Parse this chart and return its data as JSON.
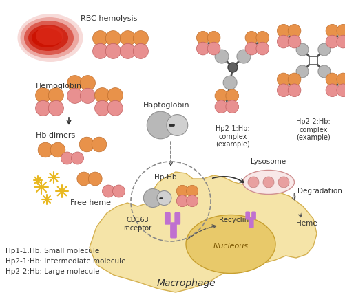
{
  "background": "#ffffff",
  "macrophage_color": "#f5e4a8",
  "nucleus_color": "#e8c96a",
  "rbc_outer_color": "#cc1100",
  "rbc_inner_color": "#e83322",
  "hb_orange_color": "#e8924a",
  "hb_pink_color": "#e89090",
  "hp_gray1": "#b8b8b8",
  "hp_gray2": "#d0d0d0",
  "hp_connector": "#404040",
  "receptor_color": "#c070d0",
  "lysosome_color": "#f0d0d0",
  "lyso_inner_color": "#e8a8a8",
  "heme_star_color": "#e8b820",
  "arrow_color": "#333333",
  "text_color": "#333333",
  "macrophage_edge": "#d4b050",
  "nucleus_edge": "#c8a030",
  "labels": {
    "rbc": "RBC hemolysis",
    "hemoglobin": "Hemoglobin",
    "hb_dimers": "Hb dimers",
    "free_heme": "Free heme",
    "haptoglobin": "Haptoglobin",
    "hp_hb": "Hp-Hb",
    "cd163": "CD163\nreceptor",
    "lysosome": "Lysosome",
    "degradation": "Degradation",
    "heme": "Heme",
    "recycling": "Recycling",
    "nucleous": "Nucleous",
    "macrophage": "Macrophage",
    "hp21_label": "Hp2-1:Hb:\ncomplex\n(example)",
    "hp22_label": "Hp2-2:Hb:\ncomplex\n(example)",
    "legend1": "Hp1-1:Hb: Small molecule",
    "legend2": "Hp2-1:Hb: Intermediate molecule",
    "legend3": "Hp2-2:Hb: Large molecule"
  }
}
